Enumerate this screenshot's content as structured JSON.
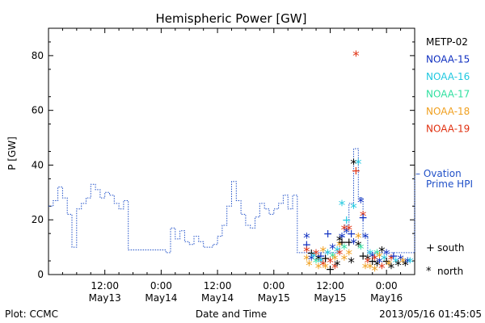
{
  "chart_data": {
    "type": "scatter",
    "title": "Hemispheric Power [GW]",
    "ylabel": "P [GW]",
    "xlabel": "Date and Time",
    "ylim": [
      0,
      90
    ],
    "xlim_hours": [
      0,
      78
    ],
    "y_ticks": [
      0,
      20,
      40,
      60,
      80
    ],
    "x_ticks": [
      {
        "t": "2013-05-13 12:00",
        "time": "12:00",
        "date": "May13"
      },
      {
        "t": "2013-05-14 00:00",
        "time": "0:00",
        "date": "May14"
      },
      {
        "t": "2013-05-14 12:00",
        "time": "12:00",
        "date": "May14"
      },
      {
        "t": "2013-05-15 00:00",
        "time": "0:00",
        "date": "May15"
      },
      {
        "t": "2013-05-15 12:00",
        "time": "12:00",
        "date": "May15"
      },
      {
        "t": "2013-05-16 00:00",
        "time": "0:00",
        "date": "May16"
      }
    ],
    "legend_position": "right",
    "satellites": [
      {
        "name": "METP-02",
        "color": "#000000"
      },
      {
        "name": "NOAA-15",
        "color": "#1030c0"
      },
      {
        "name": "NOAA-16",
        "color": "#20c8e0"
      },
      {
        "name": "NOAA-17",
        "color": "#30e0a0"
      },
      {
        "name": "NOAA-18",
        "color": "#f0a020"
      },
      {
        "name": "NOAA-19",
        "color": "#e03010"
      }
    ],
    "ovation_label_1": "– Ovation",
    "ovation_label_2": "Prime HPI",
    "ovation_color": "#2050c8",
    "marker_legend": [
      {
        "symbol": "+",
        "label": "south"
      },
      {
        "symbol": "*",
        "label": "north"
      }
    ],
    "ovation_series": [
      [
        0,
        25
      ],
      [
        1,
        25
      ],
      [
        1,
        27
      ],
      [
        2,
        27
      ],
      [
        2,
        32
      ],
      [
        3,
        32
      ],
      [
        3,
        28
      ],
      [
        4,
        28
      ],
      [
        4,
        22
      ],
      [
        5,
        22
      ],
      [
        5,
        10
      ],
      [
        6,
        10
      ],
      [
        6,
        24
      ],
      [
        7,
        24
      ],
      [
        7,
        26
      ],
      [
        8,
        26
      ],
      [
        8,
        28
      ],
      [
        9,
        28
      ],
      [
        9,
        33
      ],
      [
        10,
        33
      ],
      [
        10,
        31
      ],
      [
        11,
        31
      ],
      [
        11,
        28
      ],
      [
        12,
        28
      ],
      [
        12,
        30
      ],
      [
        13,
        30
      ],
      [
        13,
        29
      ],
      [
        14,
        29
      ],
      [
        14,
        26
      ],
      [
        15,
        26
      ],
      [
        15,
        24
      ],
      [
        16,
        24
      ],
      [
        16,
        27
      ],
      [
        17,
        27
      ],
      [
        17,
        9
      ],
      [
        25,
        9
      ],
      [
        25,
        8
      ],
      [
        26,
        8
      ],
      [
        26,
        17
      ],
      [
        27,
        17
      ],
      [
        27,
        13
      ],
      [
        28,
        13
      ],
      [
        28,
        16
      ],
      [
        29,
        16
      ],
      [
        29,
        12
      ],
      [
        30,
        12
      ],
      [
        30,
        11
      ],
      [
        31,
        11
      ],
      [
        31,
        14
      ],
      [
        32,
        14
      ],
      [
        32,
        12
      ],
      [
        33,
        12
      ],
      [
        33,
        10
      ],
      [
        35,
        10
      ],
      [
        35,
        11
      ],
      [
        36,
        11
      ],
      [
        36,
        14
      ],
      [
        37,
        14
      ],
      [
        37,
        18
      ],
      [
        38,
        18
      ],
      [
        38,
        25
      ],
      [
        39,
        25
      ],
      [
        39,
        34
      ],
      [
        40,
        34
      ],
      [
        40,
        27
      ],
      [
        41,
        27
      ],
      [
        41,
        22
      ],
      [
        42,
        22
      ],
      [
        42,
        18
      ],
      [
        43,
        18
      ],
      [
        43,
        17
      ],
      [
        44,
        17
      ],
      [
        44,
        21
      ],
      [
        45,
        21
      ],
      [
        45,
        26
      ],
      [
        46,
        26
      ],
      [
        46,
        24
      ],
      [
        47,
        24
      ],
      [
        47,
        22
      ],
      [
        48,
        22
      ],
      [
        48,
        24
      ],
      [
        49,
        24
      ],
      [
        49,
        26
      ],
      [
        50,
        26
      ],
      [
        50,
        29
      ],
      [
        51,
        29
      ],
      [
        51,
        24
      ],
      [
        52,
        24
      ],
      [
        52,
        29
      ],
      [
        53,
        29
      ],
      [
        53,
        8
      ],
      [
        62,
        8
      ],
      [
        62,
        14
      ],
      [
        63,
        14
      ],
      [
        63,
        18
      ],
      [
        64,
        18
      ],
      [
        64,
        26
      ],
      [
        65,
        26
      ],
      [
        65,
        46
      ],
      [
        66,
        46
      ],
      [
        66,
        28
      ],
      [
        67,
        28
      ],
      [
        67,
        14
      ],
      [
        68,
        14
      ],
      [
        68,
        8
      ],
      [
        78,
        8
      ],
      [
        78,
        36
      ]
    ],
    "points": [
      [
        55,
        14,
        1,
        "*"
      ],
      [
        55,
        11,
        1,
        "+"
      ],
      [
        55,
        9,
        5,
        "*"
      ],
      [
        55,
        6,
        4,
        "*"
      ],
      [
        55.5,
        4,
        4,
        "*"
      ],
      [
        56,
        8,
        0,
        "+"
      ],
      [
        56,
        6,
        1,
        "*"
      ],
      [
        56.5,
        7,
        2,
        "*"
      ],
      [
        57,
        8,
        5,
        "*"
      ],
      [
        57,
        5,
        3,
        "*"
      ],
      [
        57.5,
        6,
        0,
        "*"
      ],
      [
        57.5,
        3,
        4,
        "*"
      ],
      [
        58,
        7,
        1,
        "+"
      ],
      [
        58,
        5,
        2,
        "*"
      ],
      [
        58.5,
        9,
        4,
        "*"
      ],
      [
        58.5,
        4,
        5,
        "*"
      ],
      [
        59,
        6,
        0,
        "+"
      ],
      [
        59,
        3,
        4,
        "*"
      ],
      [
        59.5,
        8,
        2,
        "*"
      ],
      [
        59.5,
        15,
        1,
        "+"
      ],
      [
        60,
        5,
        5,
        "*"
      ],
      [
        60,
        2,
        0,
        "+"
      ],
      [
        60.5,
        10,
        1,
        "*"
      ],
      [
        60.5,
        7,
        3,
        "*"
      ],
      [
        61,
        3,
        5,
        "*"
      ],
      [
        61,
        6,
        4,
        "*"
      ],
      [
        61.5,
        4,
        0,
        "*"
      ],
      [
        61.5,
        9,
        2,
        "*"
      ],
      [
        62,
        13,
        0,
        "*"
      ],
      [
        62,
        11,
        4,
        "*"
      ],
      [
        62,
        8,
        5,
        "*"
      ],
      [
        62.5,
        14,
        1,
        "*"
      ],
      [
        62.5,
        12,
        0,
        "+"
      ],
      [
        62.5,
        26,
        2,
        "*"
      ],
      [
        63,
        17,
        5,
        "*"
      ],
      [
        63,
        10,
        3,
        "*"
      ],
      [
        63,
        6,
        4,
        "*"
      ],
      [
        63.5,
        16,
        1,
        "*"
      ],
      [
        63.5,
        20,
        2,
        "+"
      ],
      [
        64,
        17,
        5,
        "*"
      ],
      [
        64,
        12,
        0,
        "+"
      ],
      [
        64,
        8,
        4,
        "*"
      ],
      [
        64.5,
        5,
        0,
        "*"
      ],
      [
        64.5,
        15,
        1,
        "+"
      ],
      [
        65,
        25,
        2,
        "*"
      ],
      [
        65,
        41,
        0,
        "*"
      ],
      [
        65,
        12,
        1,
        "*"
      ],
      [
        65.5,
        38,
        5,
        "+"
      ],
      [
        65.5,
        80.5,
        5,
        "*"
      ],
      [
        66,
        41,
        2,
        "*"
      ],
      [
        66,
        14,
        4,
        "*"
      ],
      [
        66,
        11,
        0,
        "*"
      ],
      [
        66.5,
        27,
        1,
        "*"
      ],
      [
        66.5,
        10,
        3,
        "*"
      ],
      [
        67,
        22,
        5,
        "*"
      ],
      [
        67,
        21,
        1,
        "+"
      ],
      [
        67,
        7,
        0,
        "+"
      ],
      [
        67.5,
        14,
        1,
        "*"
      ],
      [
        67.5,
        3,
        4,
        "*"
      ],
      [
        68,
        6,
        0,
        "*"
      ],
      [
        68,
        5,
        5,
        "*"
      ],
      [
        68.5,
        8,
        2,
        "*"
      ],
      [
        68.5,
        3,
        4,
        "*"
      ],
      [
        69,
        7,
        1,
        "*"
      ],
      [
        69,
        5,
        0,
        "+"
      ],
      [
        69.5,
        2,
        4,
        "*"
      ],
      [
        69.5,
        6,
        5,
        "*"
      ],
      [
        70,
        8,
        3,
        "*"
      ],
      [
        70,
        4,
        0,
        "*"
      ],
      [
        70.5,
        5,
        1,
        "*"
      ],
      [
        70.5,
        7,
        4,
        "*"
      ],
      [
        71,
        9,
        0,
        "*"
      ],
      [
        71,
        3,
        5,
        "*"
      ],
      [
        71.5,
        6,
        2,
        "*"
      ],
      [
        72,
        5,
        0,
        "+"
      ],
      [
        72,
        8,
        1,
        "*"
      ],
      [
        72.5,
        4,
        4,
        "*"
      ],
      [
        73,
        6,
        5,
        "*"
      ],
      [
        73,
        3,
        0,
        "*"
      ],
      [
        73.5,
        7,
        1,
        "+"
      ],
      [
        74,
        5,
        2,
        "*"
      ],
      [
        74.5,
        4,
        0,
        "*"
      ],
      [
        75,
        6,
        1,
        "*"
      ],
      [
        75.5,
        5,
        4,
        "*"
      ],
      [
        76,
        4,
        0,
        "*"
      ],
      [
        76.5,
        5,
        1,
        "*"
      ],
      [
        77,
        5,
        2,
        "*"
      ]
    ]
  },
  "footer": {
    "plot_credit": "Plot: CCMC",
    "timestamp": "2013/05/16 01:45:05"
  }
}
